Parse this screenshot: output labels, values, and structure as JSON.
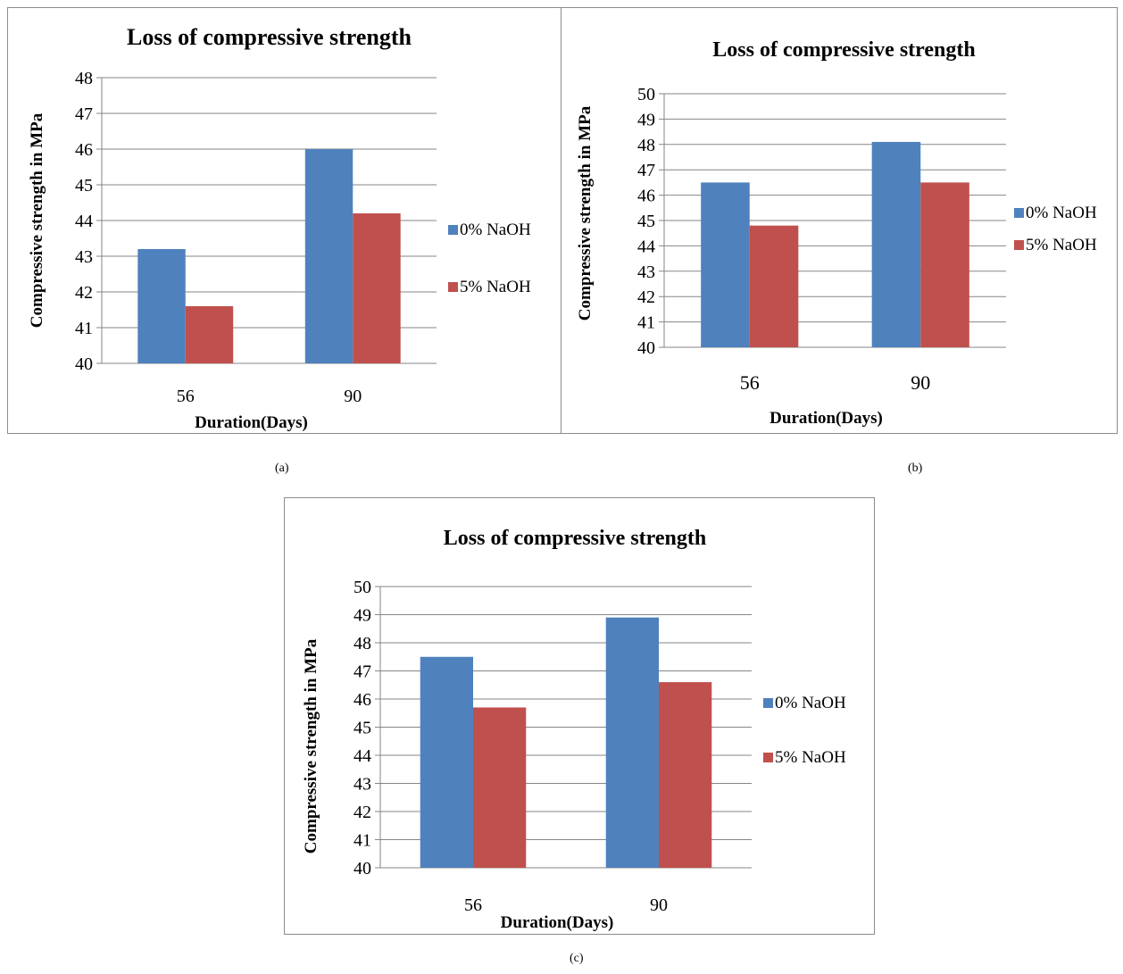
{
  "colors": {
    "series_0": "#4f81bd",
    "series_1": "#c0504d"
  },
  "panel_labels": [
    "(a)",
    "(b)",
    "(c)"
  ],
  "chart_data": [
    {
      "type": "bar",
      "title": "Loss of compressive strength",
      "xlabel": "Duration(Days)",
      "ylabel": "Compressive strength in MPa",
      "categories": [
        "56",
        "90"
      ],
      "series": [
        {
          "name": "0% NaOH",
          "values": [
            43.2,
            46.0
          ]
        },
        {
          "name": "5% NaOH",
          "values": [
            41.6,
            44.2
          ]
        }
      ],
      "ylim": [
        40,
        48
      ],
      "yticks": [
        "40",
        "41",
        "42",
        "43",
        "44",
        "45",
        "46",
        "47",
        "48"
      ],
      "grid": true,
      "legend": "right"
    },
    {
      "type": "bar",
      "title": "Loss of compressive strength",
      "xlabel": "Duration(Days)",
      "ylabel": "Compressive strength in MPa",
      "categories": [
        "56",
        "90"
      ],
      "series": [
        {
          "name": "0% NaOH",
          "values": [
            46.5,
            48.1
          ]
        },
        {
          "name": "5% NaOH",
          "values": [
            44.8,
            46.5
          ]
        }
      ],
      "ylim": [
        40,
        50
      ],
      "yticks": [
        "40",
        "41",
        "42",
        "43",
        "44",
        "45",
        "46",
        "47",
        "48",
        "49",
        "50"
      ],
      "grid": true,
      "legend": "right"
    },
    {
      "type": "bar",
      "title": "Loss of compressive strength",
      "xlabel": "Duration(Days)",
      "ylabel": "Compressive strength in MPa",
      "categories": [
        "56",
        "90"
      ],
      "series": [
        {
          "name": "0% NaOH",
          "values": [
            47.5,
            48.9
          ]
        },
        {
          "name": "5% NaOH",
          "values": [
            45.7,
            46.6
          ]
        }
      ],
      "ylim": [
        40,
        50
      ],
      "yticks": [
        "40",
        "41",
        "42",
        "43",
        "44",
        "45",
        "46",
        "47",
        "48",
        "49",
        "50"
      ],
      "grid": true,
      "legend": "right"
    }
  ]
}
